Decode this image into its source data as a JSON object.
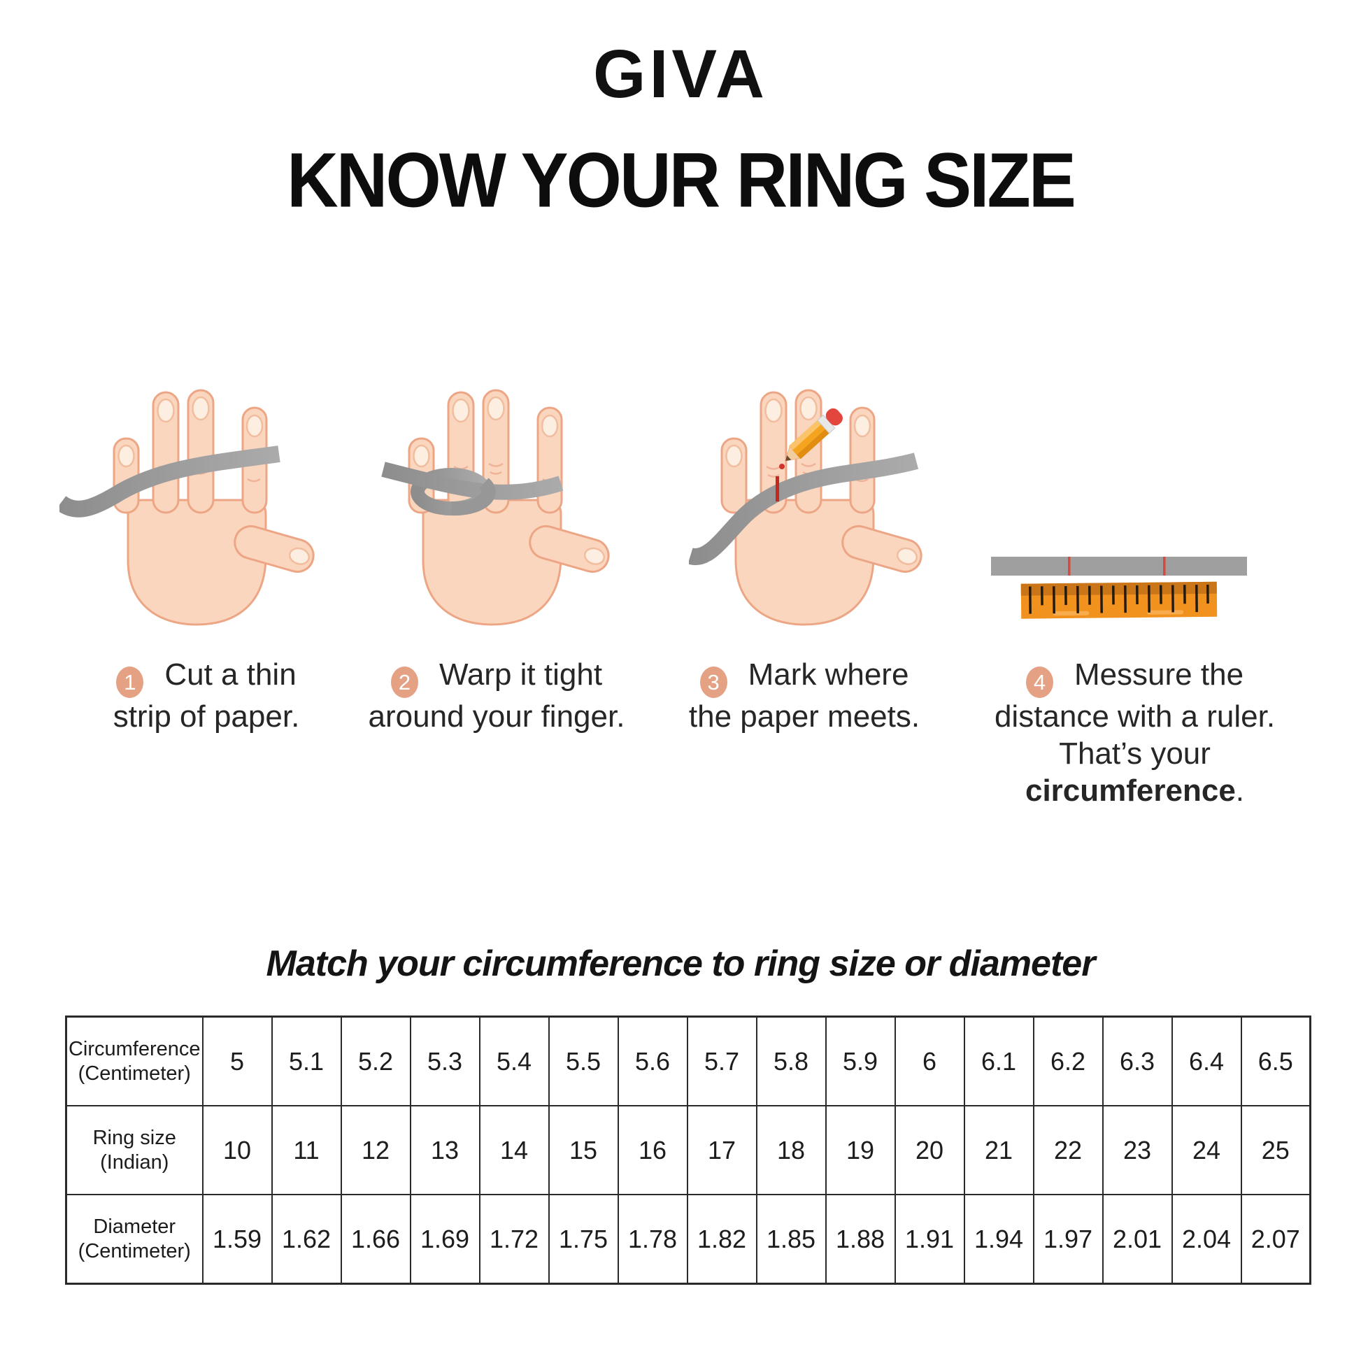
{
  "brand": {
    "name": "GIVA"
  },
  "title": "KNOW YOUR RING SIZE",
  "steps": [
    {
      "number": "1",
      "line1": "Cut a thin",
      "line2": "strip of paper."
    },
    {
      "number": "2",
      "line1": "Warp it tight",
      "line2": "around your finger."
    },
    {
      "number": "3",
      "line1": "Mark where",
      "line2": "the paper meets."
    },
    {
      "number": "4",
      "line1": "Messure the",
      "line2": "distance with a ruler.",
      "line3_prefix": "That’s your ",
      "line3_bold": "circumference",
      "line3_suffix": "."
    }
  ],
  "illustrations": [
    {
      "name": "hand with loose paper strip"
    },
    {
      "name": "hand with strip wrapped around finger"
    },
    {
      "name": "hand with pencil marking strip"
    },
    {
      "name": "marked strip measured with ruler"
    }
  ],
  "table": {
    "heading": "Match your circumference to ring size or diameter",
    "rows": [
      {
        "label": "Circumference",
        "sublabel": "(Centimeter)",
        "values": [
          "5",
          "5.1",
          "5.2",
          "5.3",
          "5.4",
          "5.5",
          "5.6",
          "5.7",
          "5.8",
          "5.9",
          "6",
          "6.1",
          "6.2",
          "6.3",
          "6.4",
          "6.5"
        ]
      },
      {
        "label": "Ring size",
        "sublabel": "(Indian)",
        "values": [
          "10",
          "11",
          "12",
          "13",
          "14",
          "15",
          "16",
          "17",
          "18",
          "19",
          "20",
          "21",
          "22",
          "23",
          "24",
          "25"
        ]
      },
      {
        "label": "Diameter",
        "sublabel": "(Centimeter)",
        "values": [
          "1.59",
          "1.62",
          "1.66",
          "1.69",
          "1.72",
          "1.75",
          "1.78",
          "1.82",
          "1.85",
          "1.88",
          "1.91",
          "1.94",
          "1.97",
          "2.01",
          "2.04",
          "2.07"
        ]
      }
    ]
  },
  "colors": {
    "badge_peach": "#E5A184",
    "skin": "#FBD6BE",
    "skin_outline": "#EDA685",
    "nail": "#FDEEE2",
    "paper_strip_grey": "#9A9A9A",
    "mark_red": "#C4281F",
    "ruler_orange": "#F2921E",
    "ruler_band": "#C97518",
    "text_black": "#1c1c1c"
  }
}
